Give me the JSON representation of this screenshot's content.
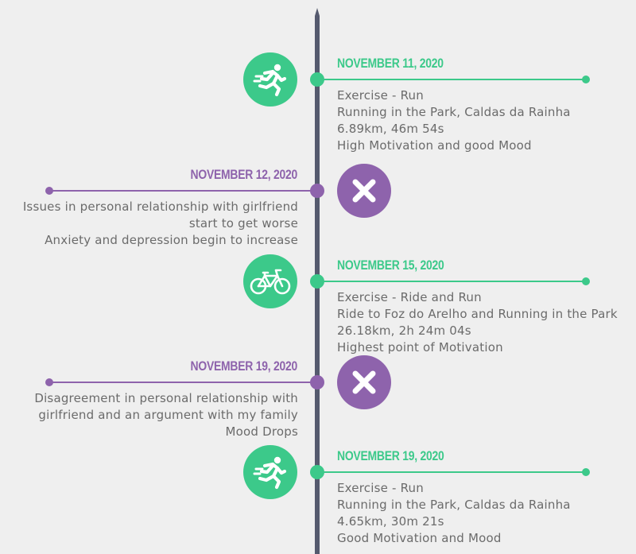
{
  "colors": {
    "exercise": "#3cc98a",
    "event": "#8e63ac",
    "axis": "#555a6e",
    "text": "#6b6b6b"
  },
  "entries": [
    {
      "side": "right",
      "kind": "exercise",
      "icon": "running-icon",
      "date": "NOVEMBER 11, 2020",
      "lines": [
        "Exercise - Run",
        "Running in the Park, Caldas da Rainha",
        "6.89km, 46m 54s",
        "High Motivation and good Mood"
      ]
    },
    {
      "side": "left",
      "kind": "event",
      "icon": "close-x-icon",
      "date": "NOVEMBER 12, 2020",
      "lines": [
        "Issues in personal relationship with girlfriend",
        "start to get worse",
        "Anxiety and depression begin to increase"
      ]
    },
    {
      "side": "right",
      "kind": "exercise",
      "icon": "bicycle-icon",
      "date": "NOVEMBER 15, 2020",
      "lines": [
        "Exercise - Ride and Run",
        "Ride to Foz do Arelho and Running in the Park",
        "26.18km, 2h 24m 04s",
        "Highest point of Motivation"
      ]
    },
    {
      "side": "left",
      "kind": "event",
      "icon": "close-x-icon",
      "date": "NOVEMBER 19, 2020",
      "lines": [
        "Disagreement in personal relationship with",
        "girlfriend and an argument with my family",
        "Mood Drops"
      ]
    },
    {
      "side": "right",
      "kind": "exercise",
      "icon": "running-icon",
      "date": "NOVEMBER 19, 2020",
      "lines": [
        "Exercise - Run",
        "Running in the Park, Caldas da Rainha",
        "4.65km, 30m 21s",
        "Good Motivation and Mood"
      ]
    }
  ]
}
